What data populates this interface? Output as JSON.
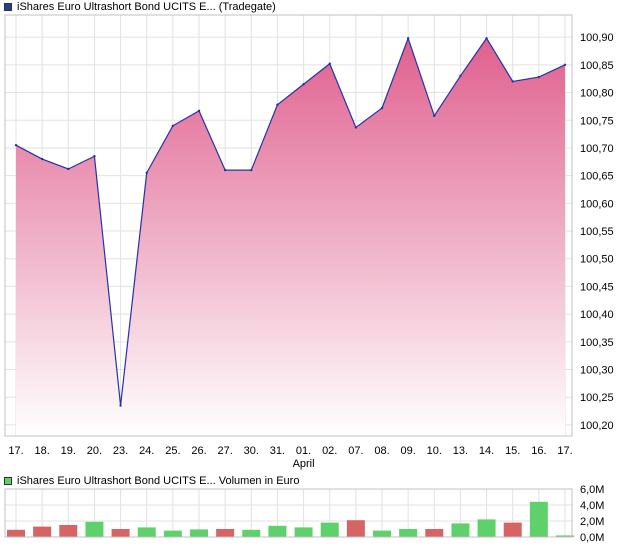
{
  "legend": {
    "price": {
      "label": "iShares Euro Ultrashort Bond UCITS E...  (Tradegate)",
      "color": "#1f3f99"
    },
    "volume": {
      "label": "iShares Euro Ultrashort Bond UCITS E...  Volumen in Euro",
      "color": "#5fd16a"
    }
  },
  "chart_data": [
    {
      "type": "area",
      "series": [
        {
          "name": "iShares Euro Ultrashort Bond UCITS E... (Tradegate)",
          "values": [
            100.705,
            100.68,
            100.662,
            100.685,
            100.235,
            100.655,
            100.74,
            100.767,
            100.66,
            100.66,
            100.778,
            100.815,
            100.852,
            100.737,
            100.772,
            100.898,
            100.758,
            100.83,
            100.898,
            100.82,
            100.828,
            100.85
          ]
        }
      ],
      "x": [
        "17.",
        "18.",
        "19.",
        "20.",
        "23.",
        "24.",
        "25.",
        "26.",
        "27.",
        "30.",
        "31.",
        "01.",
        "02.",
        "07.",
        "08.",
        "09.",
        "10.",
        "13.",
        "14.",
        "15.",
        "16.",
        "17."
      ],
      "x_month_label": {
        "index": 11,
        "text": "April"
      },
      "y_ticks": [
        "100,20",
        "100,25",
        "100,30",
        "100,35",
        "100,40",
        "100,45",
        "100,50",
        "100,55",
        "100,60",
        "100,65",
        "100,70",
        "100,75",
        "100,80",
        "100,85",
        "100,90"
      ],
      "ylim": [
        100.18,
        100.94
      ],
      "grid": true,
      "colors": {
        "line": "#2233aa",
        "fill_top": "#e0608e",
        "fill_bottom": "#ffffff",
        "grid": "#e2e2e2",
        "frame": "#c0c0c0"
      }
    },
    {
      "type": "bar",
      "series": [
        {
          "name": "Volumen in Euro",
          "values": [
            0.9,
            1.3,
            1.5,
            1.9,
            1.0,
            1.2,
            0.8,
            0.95,
            1.0,
            0.9,
            1.4,
            1.2,
            1.8,
            2.1,
            0.8,
            1.0,
            1.0,
            1.7,
            2.2,
            1.8,
            4.4,
            0.2
          ],
          "direction": [
            "down",
            "down",
            "down",
            "up",
            "down",
            "up",
            "up",
            "up",
            "down",
            "up",
            "up",
            "up",
            "up",
            "down",
            "up",
            "up",
            "down",
            "up",
            "up",
            "down",
            "up",
            "up"
          ]
        }
      ],
      "y_ticks": [
        "0,0M",
        "2,0M",
        "4,0M",
        "6,0M"
      ],
      "ylim": [
        0,
        6
      ],
      "colors": {
        "up": "#5fd16a",
        "down": "#d76464"
      }
    }
  ]
}
